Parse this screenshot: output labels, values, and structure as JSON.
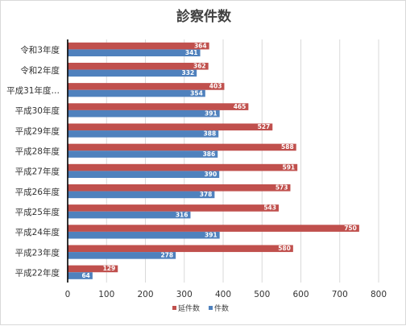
{
  "chart_data": {
    "type": "bar",
    "orientation": "horizontal",
    "title": "診察件数",
    "categories": [
      "令和3年度",
      "令和2年度",
      "平成31年度…",
      "平成30年度",
      "平成29年度",
      "平成28年度",
      "平成27年度",
      "平成26年度",
      "平成25年度",
      "平成24年度",
      "平成23年度",
      "平成22年度"
    ],
    "series": [
      {
        "name": "延件数",
        "color": "#c0504d",
        "values": [
          364,
          362,
          403,
          465,
          527,
          588,
          591,
          573,
          543,
          750,
          580,
          129
        ]
      },
      {
        "name": "件数",
        "color": "#4f81bd",
        "values": [
          341,
          332,
          354,
          391,
          388,
          386,
          390,
          378,
          316,
          391,
          278,
          64
        ]
      }
    ],
    "xlim": [
      0,
      800
    ],
    "xticks": [
      0,
      100,
      200,
      300,
      400,
      500,
      600,
      700,
      800
    ],
    "grid": true,
    "legend_position": "bottom"
  }
}
